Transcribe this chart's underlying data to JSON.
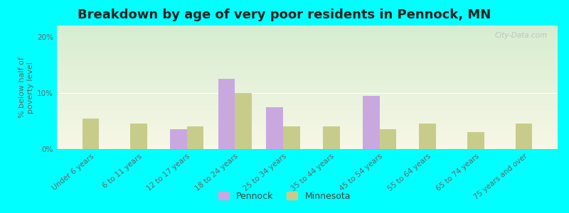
{
  "title": "Breakdown by age of very poor residents in Pennock, MN",
  "ylabel": "% below half of\npoverty level",
  "categories": [
    "Under 6 years",
    "6 to 11 years",
    "12 to 17 years",
    "18 to 24 years",
    "25 to 34 years",
    "35 to 44 years",
    "45 to 54 years",
    "55 to 64 years",
    "65 to 74 years",
    "75 years and over"
  ],
  "pennock_values": [
    null,
    null,
    3.5,
    12.5,
    7.5,
    null,
    9.5,
    null,
    null,
    null
  ],
  "minnesota_values": [
    5.5,
    4.5,
    4.0,
    10.0,
    4.0,
    4.0,
    3.5,
    4.5,
    3.0,
    4.5
  ],
  "pennock_color": "#c9a8e0",
  "minnesota_color": "#c8cc8a",
  "outer_background": "#00ffff",
  "ylim": [
    0,
    22
  ],
  "yticks": [
    0,
    10,
    20
  ],
  "ytick_labels": [
    "0%",
    "10%",
    "20%"
  ],
  "bar_width": 0.35,
  "title_fontsize": 13,
  "axis_fontsize": 8,
  "tick_fontsize": 7.5,
  "watermark": "City-Data.com"
}
